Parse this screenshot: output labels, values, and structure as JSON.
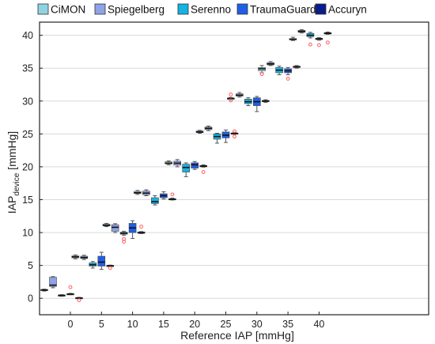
{
  "chart_data": {
    "type": "boxplot",
    "xlabel": "Reference IAP [mmHg]",
    "ylabel_main": "IAP",
    "ylabel_sub": "device",
    "ylabel_unit": " [mmHg]",
    "x_ticks": [
      "0",
      "5",
      "10",
      "15",
      "20",
      "25",
      "30",
      "35",
      "40"
    ],
    "y_ticks": [
      0,
      5,
      10,
      15,
      20,
      25,
      30,
      35,
      40
    ],
    "ylim": [
      -2.5,
      42
    ],
    "grid": "horizontal",
    "legend_position": "top",
    "reference_levels": [
      0,
      5,
      10,
      15,
      20,
      25,
      30,
      35,
      40
    ],
    "series": [
      {
        "name": "CiMON",
        "color": "#8fd3e2",
        "boxes": [
          {
            "ref": 0,
            "min": 1.1,
            "q1": 1.2,
            "med": 1.25,
            "q3": 1.35,
            "max": 1.4,
            "outliers": []
          },
          {
            "ref": 5,
            "min": 6.0,
            "q1": 6.15,
            "med": 6.3,
            "q3": 6.45,
            "max": 6.6,
            "outliers": []
          },
          {
            "ref": 10,
            "min": 10.9,
            "q1": 11.0,
            "med": 11.1,
            "q3": 11.3,
            "max": 11.4,
            "outliers": []
          },
          {
            "ref": 15,
            "min": 15.8,
            "q1": 15.95,
            "med": 16.05,
            "q3": 16.25,
            "max": 16.4,
            "outliers": []
          },
          {
            "ref": 20,
            "min": 20.3,
            "q1": 20.45,
            "med": 20.55,
            "q3": 20.75,
            "max": 20.9,
            "outliers": []
          },
          {
            "ref": 25,
            "min": 25.1,
            "q1": 25.2,
            "med": 25.3,
            "q3": 25.45,
            "max": 25.55,
            "outliers": []
          },
          {
            "ref": 30,
            "min": 30.2,
            "q1": 30.3,
            "med": 30.4,
            "q3": 30.45,
            "max": 30.55,
            "outliers": [
              31.0,
              30.1
            ]
          },
          {
            "ref": 35,
            "min": 34.3,
            "q1": 34.6,
            "med": 34.9,
            "q3": 35.1,
            "max": 35.4,
            "outliers": [
              34.1
            ]
          },
          {
            "ref": 40,
            "min": 39.2,
            "q1": 39.3,
            "med": 39.4,
            "q3": 39.5,
            "max": 39.7,
            "outliers": []
          }
        ]
      },
      {
        "name": "Spiegelberg",
        "color": "#8ea2e8",
        "boxes": [
          {
            "ref": 0,
            "min": 1.6,
            "q1": 1.8,
            "med": 2.0,
            "q3": 3.2,
            "max": 3.3,
            "outliers": []
          },
          {
            "ref": 5,
            "min": 5.9,
            "q1": 6.05,
            "med": 6.2,
            "q3": 6.4,
            "max": 6.55,
            "outliers": []
          },
          {
            "ref": 10,
            "min": 10.0,
            "q1": 10.2,
            "med": 10.8,
            "q3": 11.2,
            "max": 11.35,
            "outliers": []
          },
          {
            "ref": 15,
            "min": 15.6,
            "q1": 15.75,
            "med": 16.0,
            "q3": 16.3,
            "max": 16.5,
            "outliers": []
          },
          {
            "ref": 20,
            "min": 20.0,
            "q1": 20.25,
            "med": 20.55,
            "q3": 20.85,
            "max": 21.1,
            "outliers": []
          },
          {
            "ref": 25,
            "min": 25.5,
            "q1": 25.65,
            "med": 25.85,
            "q3": 26.05,
            "max": 26.2,
            "outliers": []
          },
          {
            "ref": 30,
            "min": 30.6,
            "q1": 30.75,
            "med": 30.9,
            "q3": 31.1,
            "max": 31.3,
            "outliers": []
          },
          {
            "ref": 35,
            "min": 35.4,
            "q1": 35.5,
            "med": 35.65,
            "q3": 35.85,
            "max": 36.0,
            "outliers": []
          },
          {
            "ref": 40,
            "min": 40.35,
            "q1": 40.45,
            "med": 40.6,
            "q3": 40.75,
            "max": 40.85,
            "outliers": []
          }
        ]
      },
      {
        "name": "Serenno",
        "color": "#14b3e3",
        "boxes": [
          {
            "ref": 0,
            "min": 0.3,
            "q1": 0.35,
            "med": 0.45,
            "q3": 0.5,
            "max": 0.55,
            "outliers": []
          },
          {
            "ref": 5,
            "min": 4.6,
            "q1": 4.9,
            "med": 5.1,
            "q3": 5.4,
            "max": 5.6,
            "outliers": []
          },
          {
            "ref": 10,
            "min": 9.6,
            "q1": 9.75,
            "med": 9.9,
            "q3": 10.05,
            "max": 10.2,
            "outliers": [
              9.0,
              8.6
            ]
          },
          {
            "ref": 15,
            "min": 14.2,
            "q1": 14.4,
            "med": 14.7,
            "q3": 15.3,
            "max": 15.6,
            "outliers": []
          },
          {
            "ref": 20,
            "min": 18.5,
            "q1": 19.2,
            "med": 19.9,
            "q3": 20.4,
            "max": 20.6,
            "outliers": []
          },
          {
            "ref": 25,
            "min": 23.6,
            "q1": 24.2,
            "med": 24.6,
            "q3": 25.0,
            "max": 25.1,
            "outliers": []
          },
          {
            "ref": 30,
            "min": 29.3,
            "q1": 29.6,
            "med": 29.9,
            "q3": 30.3,
            "max": 30.5,
            "outliers": []
          },
          {
            "ref": 35,
            "min": 34.0,
            "q1": 34.3,
            "med": 34.7,
            "q3": 35.1,
            "max": 35.3,
            "outliers": []
          },
          {
            "ref": 40,
            "min": 39.6,
            "q1": 39.8,
            "med": 40.0,
            "q3": 40.3,
            "max": 40.45,
            "outliers": [
              38.6
            ]
          }
        ]
      },
      {
        "name": "TraumaGuard",
        "color": "#1f5fe6",
        "boxes": [
          {
            "ref": 0,
            "min": 0.55,
            "q1": 0.6,
            "med": 0.65,
            "q3": 0.7,
            "max": 0.75,
            "outliers": [
              1.7
            ]
          },
          {
            "ref": 5,
            "min": 4.4,
            "q1": 4.9,
            "med": 5.5,
            "q3": 6.4,
            "max": 7.0,
            "outliers": []
          },
          {
            "ref": 10,
            "min": 9.1,
            "q1": 10.0,
            "med": 10.7,
            "q3": 11.4,
            "max": 11.8,
            "outliers": []
          },
          {
            "ref": 15,
            "min": 15.1,
            "q1": 15.3,
            "med": 15.6,
            "q3": 15.9,
            "max": 16.2,
            "outliers": []
          },
          {
            "ref": 20,
            "min": 19.6,
            "q1": 19.8,
            "med": 20.3,
            "q3": 20.6,
            "max": 20.8,
            "outliers": []
          },
          {
            "ref": 25,
            "min": 23.7,
            "q1": 24.4,
            "med": 24.8,
            "q3": 25.3,
            "max": 25.6,
            "outliers": []
          },
          {
            "ref": 30,
            "min": 28.4,
            "q1": 29.3,
            "med": 29.9,
            "q3": 30.5,
            "max": 30.7,
            "outliers": []
          },
          {
            "ref": 35,
            "min": 34.0,
            "q1": 34.3,
            "med": 34.6,
            "q3": 34.9,
            "max": 35.1,
            "outliers": [
              33.4
            ]
          },
          {
            "ref": 40,
            "min": 39.25,
            "q1": 39.35,
            "med": 39.45,
            "q3": 39.55,
            "max": 39.65,
            "outliers": [
              38.5
            ]
          }
        ]
      },
      {
        "name": "Accuryn",
        "color": "#0b1c8c",
        "boxes": [
          {
            "ref": 0,
            "min": -0.05,
            "q1": 0.0,
            "med": 0.05,
            "q3": 0.1,
            "max": 0.15,
            "outliers": [
              -0.3
            ]
          },
          {
            "ref": 5,
            "min": 4.85,
            "q1": 4.9,
            "med": 4.95,
            "q3": 5.0,
            "max": 5.05,
            "outliers": [
              4.6
            ]
          },
          {
            "ref": 10,
            "min": 9.85,
            "q1": 9.9,
            "med": 9.95,
            "q3": 10.1,
            "max": 10.15,
            "outliers": [
              10.9
            ]
          },
          {
            "ref": 15,
            "min": 14.95,
            "q1": 15.0,
            "med": 15.05,
            "q3": 15.15,
            "max": 15.25,
            "outliers": [
              15.8
            ]
          },
          {
            "ref": 20,
            "min": 19.95,
            "q1": 20.0,
            "med": 20.1,
            "q3": 20.2,
            "max": 20.3,
            "outliers": [
              19.2
            ]
          },
          {
            "ref": 25,
            "min": 24.95,
            "q1": 25.0,
            "med": 25.05,
            "q3": 25.15,
            "max": 25.25,
            "outliers": [
              24.6,
              25.4
            ]
          },
          {
            "ref": 30,
            "min": 29.8,
            "q1": 29.9,
            "med": 30.0,
            "q3": 30.1,
            "max": 30.2,
            "outliers": []
          },
          {
            "ref": 35,
            "min": 35.0,
            "q1": 35.1,
            "med": 35.2,
            "q3": 35.3,
            "max": 35.4,
            "outliers": []
          },
          {
            "ref": 40,
            "min": 40.15,
            "q1": 40.2,
            "med": 40.3,
            "q3": 40.4,
            "max": 40.5,
            "outliers": [
              38.9
            ]
          }
        ]
      }
    ]
  },
  "colors": {
    "outlier": "#ff5a5a",
    "whisker": "#555555",
    "median": "#111111",
    "grid": "#d9d9d9",
    "frame": "#222222"
  }
}
